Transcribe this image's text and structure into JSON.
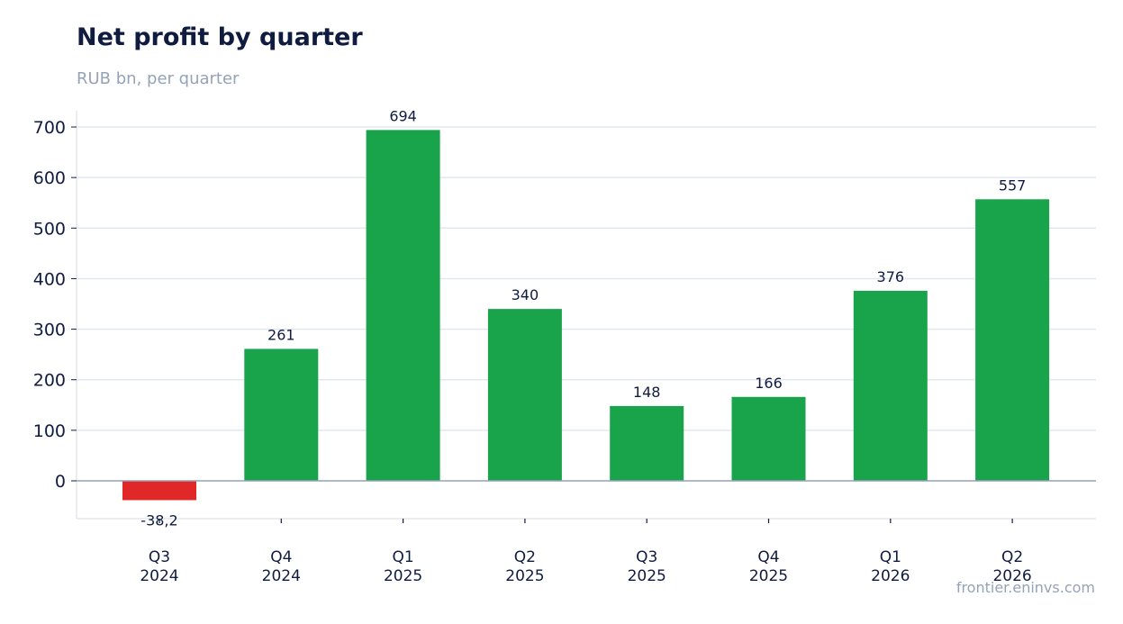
{
  "header": {
    "title": "Net profit by quarter",
    "subtitle": "RUB bn, per quarter"
  },
  "footer": {
    "source": "frontier.eninvs.com"
  },
  "colors": {
    "positive": "#19a34a",
    "negative": "#e02828",
    "grid": "#e2e8f0",
    "baseline": "#94a3b8"
  },
  "chart_data": {
    "type": "bar",
    "title": "Net profit by quarter",
    "subtitle": "RUB bn, per quarter",
    "xlabel": "",
    "ylabel": "",
    "categories": [
      "Q3 2024",
      "Q4 2024",
      "Q1 2025",
      "Q2 2025",
      "Q3 2025",
      "Q4 2025",
      "Q1 2026",
      "Q2 2026"
    ],
    "category_lines": [
      [
        "Q3",
        "2024"
      ],
      [
        "Q4",
        "2024"
      ],
      [
        "Q1",
        "2025"
      ],
      [
        "Q2",
        "2025"
      ],
      [
        "Q3",
        "2025"
      ],
      [
        "Q4",
        "2025"
      ],
      [
        "Q1",
        "2026"
      ],
      [
        "Q2",
        "2026"
      ]
    ],
    "values": [
      -38.2,
      261,
      694,
      340,
      148,
      166,
      376,
      557
    ],
    "data_labels": [
      "-38,2",
      "261",
      "694",
      "340",
      "148",
      "166",
      "376",
      "557"
    ],
    "yticks": [
      0,
      100,
      200,
      300,
      400,
      500,
      600,
      700
    ],
    "ylim": [
      -75,
      730
    ],
    "grid": true,
    "legend": "none"
  }
}
